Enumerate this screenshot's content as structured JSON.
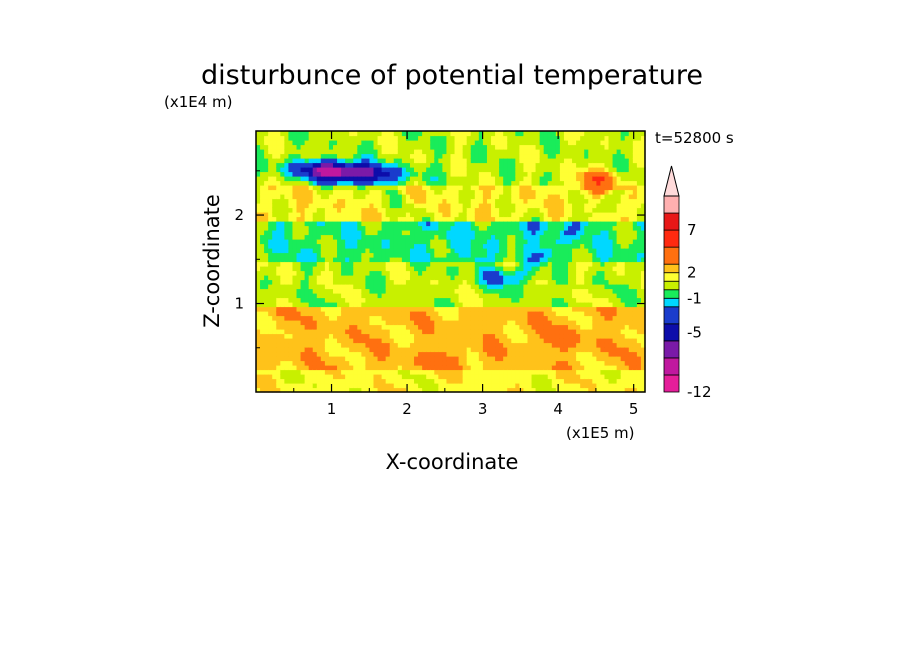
{
  "chart_data": {
    "type": "heatmap",
    "title": "disturbunce of potential temperature",
    "time_label": "t=52800 s",
    "xlabel": "X-coordinate",
    "ylabel": "Z-coordinate",
    "x_unit": "(x1E5 m)",
    "y_unit": "(x1E4 m)",
    "xlim": [
      0,
      5.15
    ],
    "ylim": [
      0,
      2.95
    ],
    "x_ticks": [
      "1",
      "2",
      "3",
      "4",
      "5"
    ],
    "y_ticks": [
      "1",
      "2"
    ],
    "colorbar": {
      "labels": [
        "7",
        "2",
        "-1",
        "-5",
        "-12"
      ],
      "label_levels": [
        7,
        2,
        -1,
        -5,
        -12
      ],
      "bands": [
        {
          "lo": -12,
          "hi": -10,
          "color": "#e51e9a"
        },
        {
          "lo": -10,
          "hi": -8,
          "color": "#c0189f"
        },
        {
          "lo": -8,
          "hi": -6,
          "color": "#7a1aa8"
        },
        {
          "lo": -6,
          "hi": -4,
          "color": "#0d0daa"
        },
        {
          "lo": -4,
          "hi": -2,
          "color": "#1a3ccc"
        },
        {
          "lo": -2,
          "hi": -1,
          "color": "#00d8ff"
        },
        {
          "lo": -1,
          "hi": 0,
          "color": "#19ec5a"
        },
        {
          "lo": 0,
          "hi": 1,
          "color": "#c8f000"
        },
        {
          "lo": 1,
          "hi": 2,
          "color": "#ffff33"
        },
        {
          "lo": 2,
          "hi": 3,
          "color": "#ffc21a"
        },
        {
          "lo": 3,
          "hi": 5,
          "color": "#ff7010"
        },
        {
          "lo": 5,
          "hi": 7,
          "color": "#ff2a10"
        },
        {
          "lo": 7,
          "hi": 9,
          "color": "#e81818"
        },
        {
          "lo": 9,
          "hi": 11,
          "color": "#ffb0b0"
        }
      ],
      "overflow_color": "#ffdada"
    },
    "description_bands": [
      {
        "z": [
          0.0,
          0.25
        ],
        "value": 1.5
      },
      {
        "z": [
          0.25,
          0.95
        ],
        "value": 2.5
      },
      {
        "z": [
          0.95,
          1.45
        ],
        "value": 0.5
      },
      {
        "z": [
          1.45,
          1.95
        ],
        "value": -0.5
      },
      {
        "z": [
          1.95,
          2.35
        ],
        "value": 1.5
      },
      {
        "z": [
          2.35,
          2.95
        ],
        "value": 0.5
      }
    ],
    "features": [
      {
        "x": 1.0,
        "z": 2.5,
        "value": -5
      },
      {
        "x": 1.5,
        "z": 2.45,
        "value": -3
      },
      {
        "x": 4.5,
        "z": 2.4,
        "value": 4
      },
      {
        "x": 4.0,
        "z": 0.6,
        "value": 3.5
      },
      {
        "x": 2.5,
        "z": 0.35,
        "value": 3.5
      },
      {
        "x": 3.6,
        "z": 1.85,
        "value": -1.5
      },
      {
        "x": 3.3,
        "z": 1.3,
        "value": -1.5
      }
    ]
  }
}
